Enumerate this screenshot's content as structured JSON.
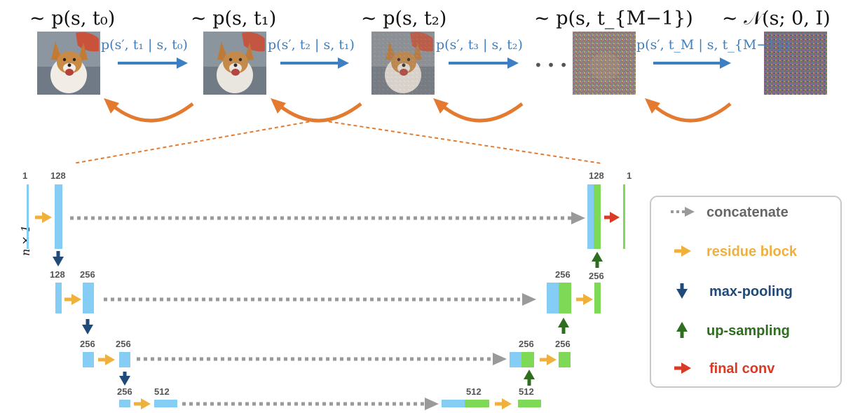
{
  "distributions": [
    "~ p(s, t₀)",
    "~ p(s, t₁)",
    "~ p(s, t₂)",
    "~ p(s, t_{M−1})",
    "~ 𝒩(s; 0, I)"
  ],
  "transitions": [
    "p(s′, t₁ | s, t₀)",
    "p(s′, t₂ | s, t₁)",
    "p(s′, t₃ | s, t₂)",
    "p(s′, t_M | s, t_{M−1})"
  ],
  "ellipsis": "• • •",
  "unet": {
    "input_label": "n × 1",
    "numbers": [
      "1",
      "128",
      "128",
      "256",
      "256",
      "256",
      "256",
      "512",
      "512",
      "512",
      "256",
      "256",
      "256",
      "256",
      "128",
      "1"
    ]
  },
  "legend": [
    {
      "label": "concatenate",
      "color": "#666666",
      "icon": "dotted-arrow-icon"
    },
    {
      "label": "residue block",
      "color": "#f0b03c",
      "icon": "orange-arrow-icon"
    },
    {
      "label": "max-pooling",
      "color": "#1f4a7a",
      "icon": "down-arrow-icon"
    },
    {
      "label": "up-sampling",
      "color": "#2d6e1f",
      "icon": "up-arrow-icon"
    },
    {
      "label": "final conv",
      "color": "#d83a25",
      "icon": "red-arrow-icon"
    }
  ],
  "colors": {
    "blue_arrow": "#3d7fc2",
    "reverse_arrow": "#e37a2f",
    "encoder_block": "#86cdf6",
    "decoder_block": "#7ed957",
    "concat": "#9a9a9a",
    "residue": "#f0b03c",
    "maxpool": "#1f4a7a",
    "upsample": "#2d6e1f",
    "finalconv": "#d83a25"
  }
}
